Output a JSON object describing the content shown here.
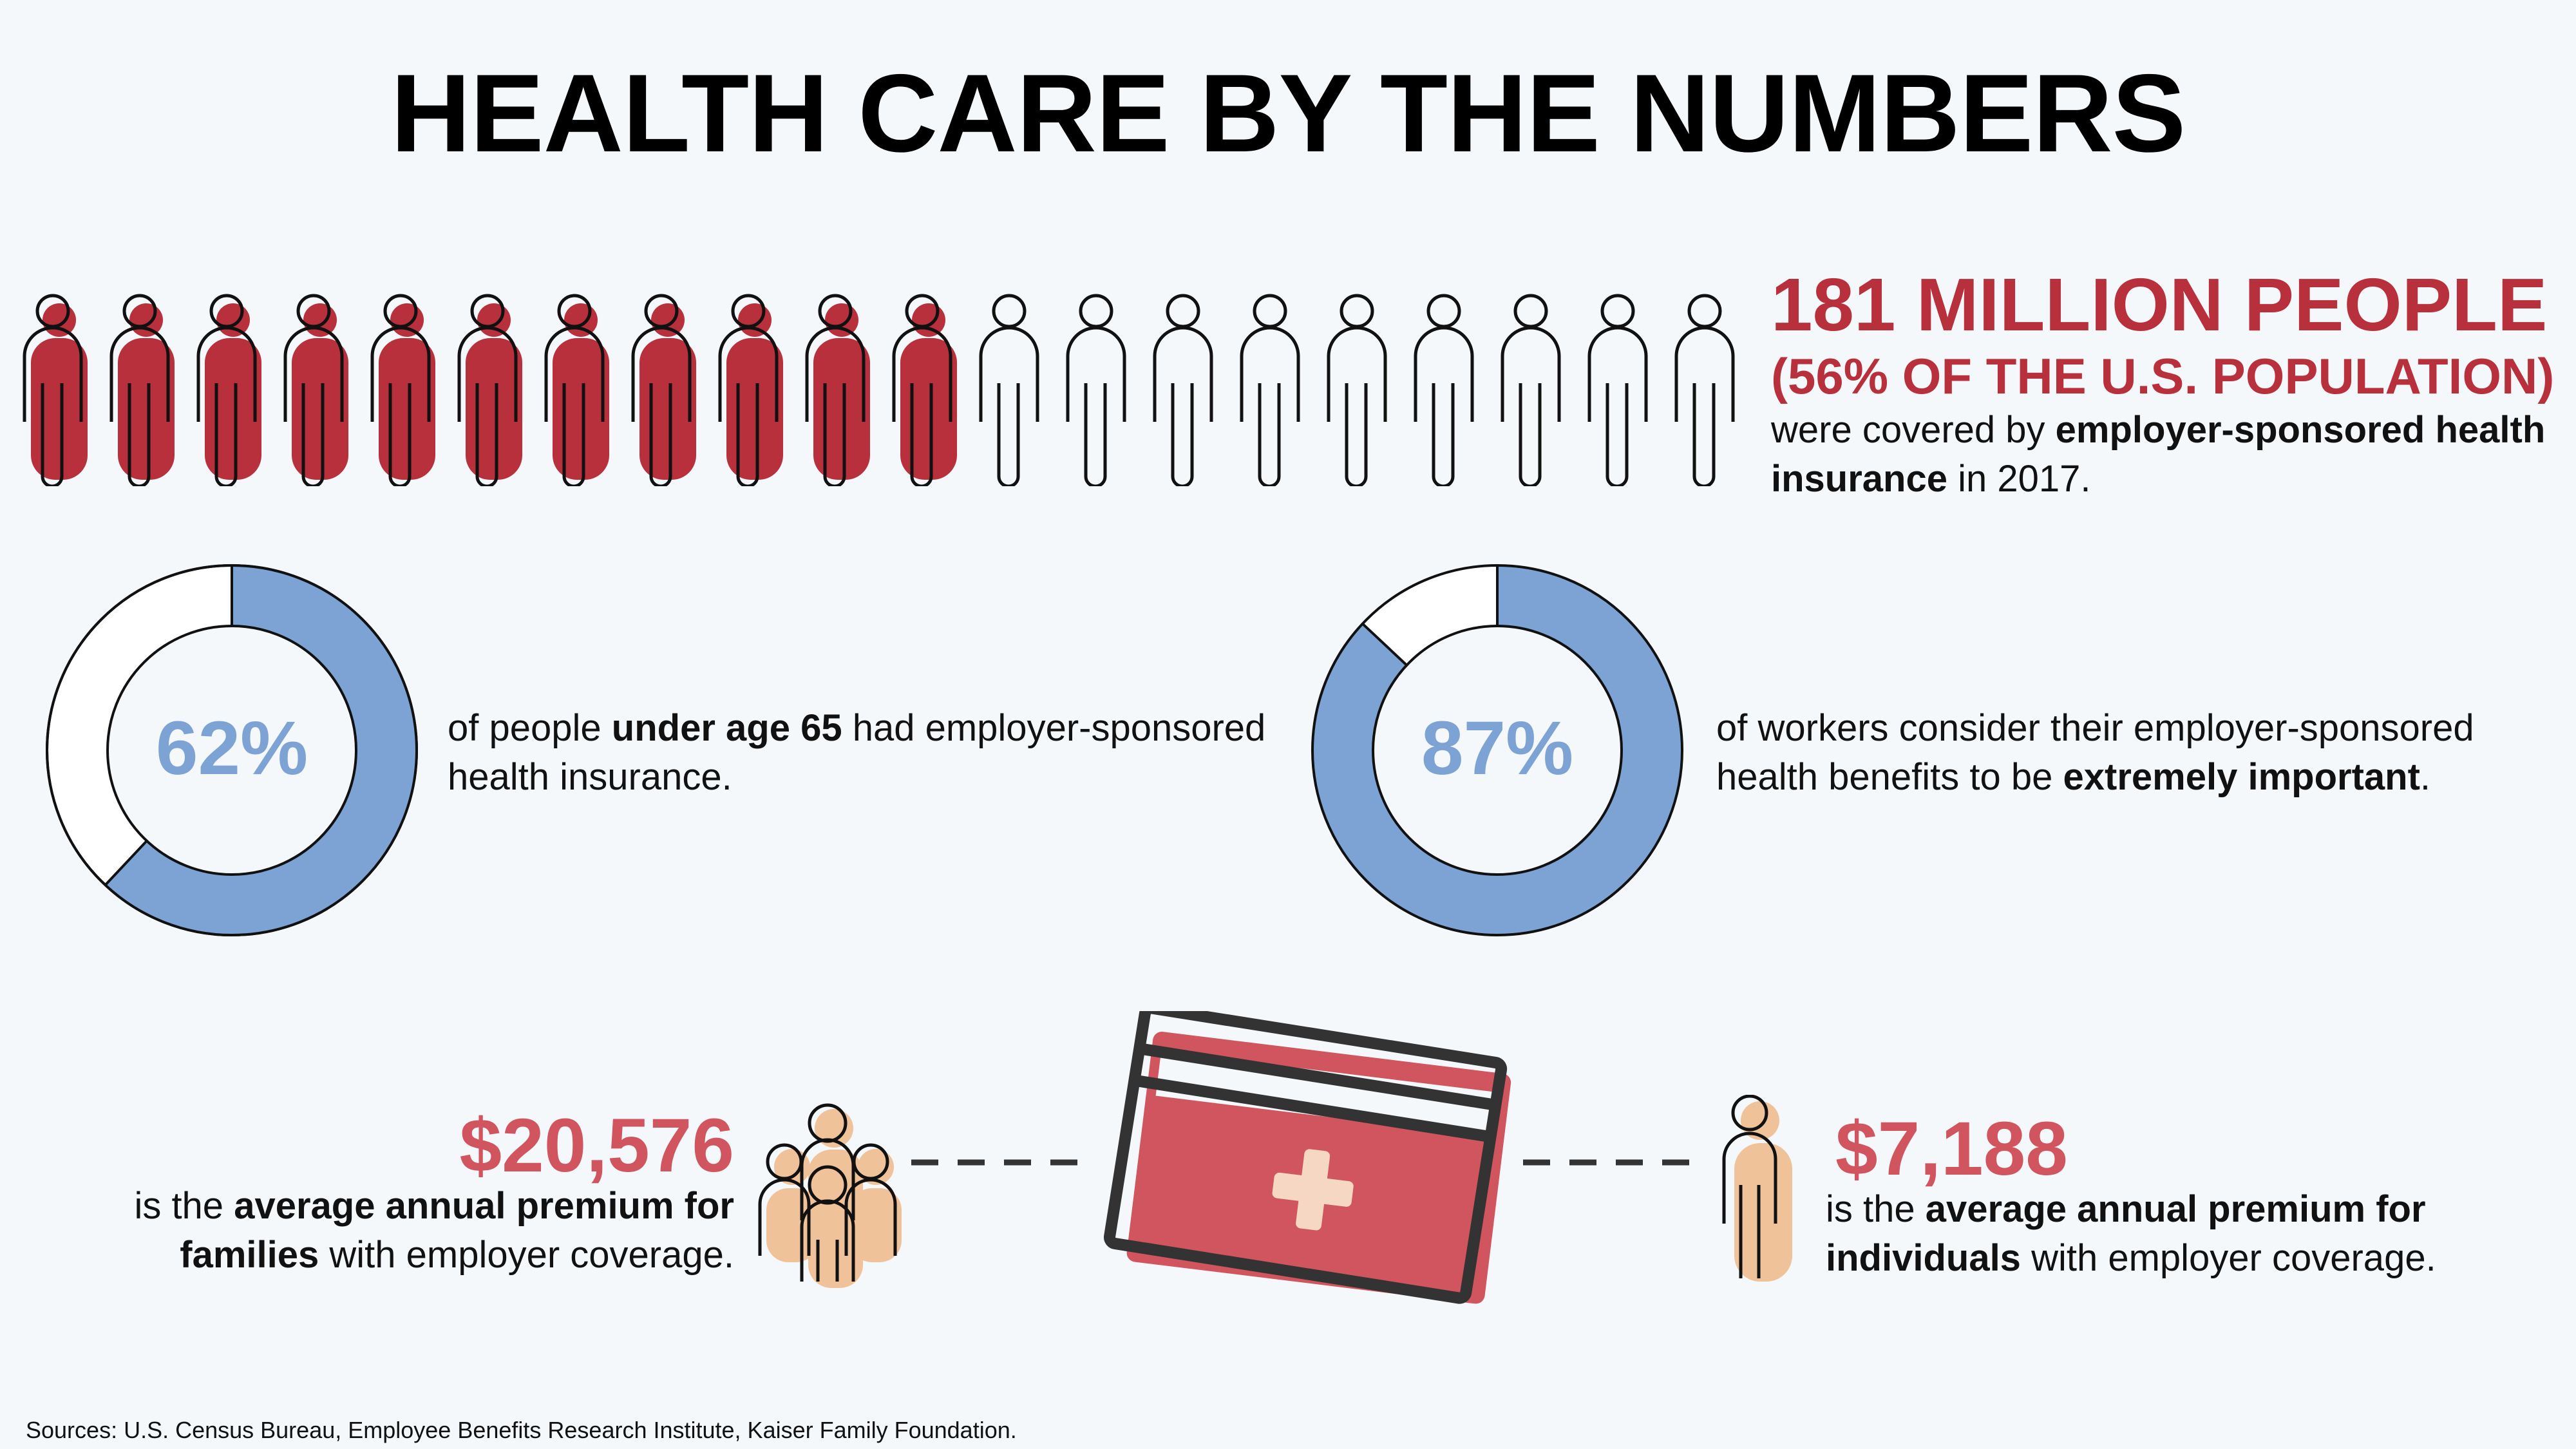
{
  "title": "HEALTH CARE BY THE NUMBERS",
  "population": {
    "headline": "181 MILLION PEOPLE",
    "subheadline": "(56% OF THE U.S. POPULATION)",
    "desc_1": "were covered by ",
    "desc_bold": "employer-sponsored health insurance",
    "desc_2": " in 2017.",
    "total_icons": 20,
    "filled_icons": 11,
    "fill_color": "#b8303c"
  },
  "stat_under65": {
    "percent_label": "62%",
    "value": 0.62,
    "text_1": "of people ",
    "text_bold": "under age 65",
    "text_2": " had employer-sponsored health insurance."
  },
  "stat_workers": {
    "percent_label": "87%",
    "value": 0.87,
    "text_1": "of workers consider their employer-sponsored health benefits to be ",
    "text_bold": "extremely important",
    "text_2": "."
  },
  "family_premium": {
    "value": "$20,576",
    "text_1": "is the ",
    "text_bold_1": "average annual premium for families",
    "text_2": " with employer coverage."
  },
  "individual_premium": {
    "value": "$7,188",
    "text_1": "is the ",
    "text_bold_1": "average annual premium for individuals",
    "text_2": " with employer coverage."
  },
  "colors": {
    "accent_red": "#b8303c",
    "value_red": "#d0555e",
    "donut_blue": "#7da3d4",
    "tan": "#efc29a"
  },
  "sources": "Sources: U.S. Census Bureau, Employee Benefits Research Institute, Kaiser Family Foundation."
}
